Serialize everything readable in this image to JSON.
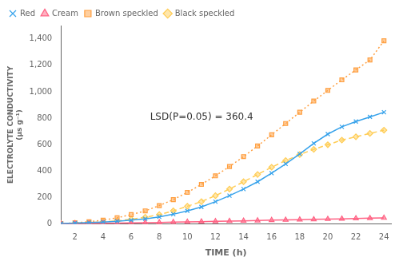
{
  "chart_data": {
    "type": "line",
    "xlabel": "TIME (h)",
    "ylabel": "ELECTROLYTE CONDUCTIVITY\n(µs g⁻¹)",
    "x": [
      1,
      2,
      3,
      4,
      5,
      6,
      7,
      8,
      9,
      10,
      11,
      12,
      13,
      14,
      15,
      16,
      17,
      18,
      19,
      20,
      21,
      22,
      23,
      24
    ],
    "series": [
      {
        "name": "Red",
        "marker": "x",
        "line_style": "solid",
        "values": [
          5,
          8,
          12,
          16,
          22,
          30,
          40,
          55,
          75,
          100,
          130,
          170,
          215,
          265,
          320,
          385,
          455,
          530,
          610,
          680,
          735,
          775,
          810,
          845
        ]
      },
      {
        "name": "Cream",
        "marker": "triangle",
        "line_style": "solid",
        "values": [
          3,
          4,
          5,
          7,
          8,
          9,
          11,
          13,
          15,
          17,
          19,
          21,
          23,
          25,
          27,
          30,
          32,
          34,
          36,
          38,
          40,
          43,
          45,
          47
        ]
      },
      {
        "name": "Brown speckled",
        "marker": "square",
        "line_style": "dotted",
        "values": [
          5,
          10,
          18,
          30,
          48,
          72,
          100,
          140,
          185,
          240,
          300,
          365,
          435,
          510,
          590,
          675,
          760,
          845,
          930,
          1010,
          1090,
          1165,
          1240,
          1385
        ]
      },
      {
        "name": "Black speckled",
        "marker": "diamond",
        "line_style": "dashed",
        "values": [
          4,
          7,
          11,
          17,
          25,
          37,
          52,
          72,
          100,
          135,
          170,
          215,
          265,
          320,
          375,
          430,
          480,
          525,
          565,
          600,
          635,
          660,
          685,
          710
        ]
      }
    ],
    "xlim": [
      1,
      24.5
    ],
    "ylim": [
      0,
      1500
    ],
    "xticks": [
      2,
      4,
      6,
      8,
      10,
      12,
      14,
      16,
      18,
      20,
      22,
      24
    ],
    "yticks": [
      0,
      200,
      400,
      600,
      800,
      1000,
      1200,
      1400
    ],
    "grid": false,
    "legend": "upper left",
    "annotation": "LSD(P=0.05) = 360.4"
  }
}
